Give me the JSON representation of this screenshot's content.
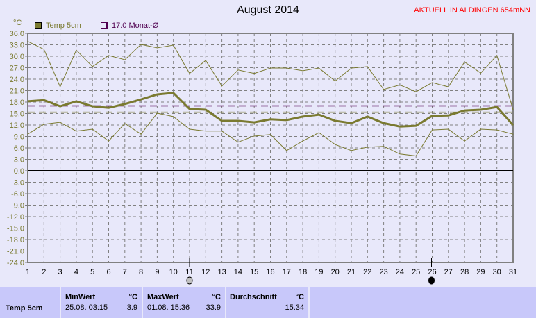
{
  "chart_data": {
    "type": "line",
    "title": "August 2014",
    "station": "AKTUELL IN ALDINGEN 654mNN",
    "ylabel": "°C",
    "ylim": [
      -24,
      36
    ],
    "yticks": [
      "36.0",
      "33.0",
      "30.0",
      "27.0",
      "24.0",
      "21.0",
      "18.0",
      "15.0",
      "12.0",
      "9.0",
      "6.0",
      "3.0",
      "0.0",
      "-3.0",
      "-6.0",
      "-9.0",
      "-12.0",
      "-15.0",
      "-18.0",
      "-21.0",
      "-24.0"
    ],
    "x": [
      1,
      2,
      3,
      4,
      5,
      6,
      7,
      8,
      9,
      10,
      11,
      12,
      13,
      14,
      15,
      16,
      17,
      18,
      19,
      20,
      21,
      22,
      23,
      24,
      25,
      26,
      27,
      28,
      29,
      30,
      31
    ],
    "grid": true,
    "legend": [
      {
        "label": "Temp 5cm",
        "color": "#7a7a30"
      },
      {
        "label": "17.0 Monat-Ø",
        "color": "#500050"
      }
    ],
    "series": [
      {
        "name": "Temp 5cm max",
        "values": [
          33.9,
          31.8,
          22.0,
          31.6,
          27.3,
          30.2,
          29.1,
          33.1,
          32.2,
          32.9,
          25.5,
          28.9,
          22.2,
          26.4,
          25.5,
          26.9,
          26.9,
          26.2,
          26.9,
          23.5,
          26.9,
          27.3,
          21.3,
          22.5,
          20.7,
          23.1,
          22.0,
          28.5,
          25.6,
          30.2,
          16.0
        ]
      },
      {
        "name": "Temp 5cm mittel",
        "values": [
          18.2,
          18.5,
          16.9,
          18.2,
          16.9,
          16.5,
          17.5,
          18.7,
          20.0,
          20.4,
          16.2,
          16.0,
          13.1,
          13.1,
          12.7,
          13.5,
          13.3,
          14.2,
          14.7,
          13.1,
          12.5,
          14.2,
          12.5,
          11.6,
          11.8,
          14.4,
          14.5,
          15.8,
          16.0,
          16.7,
          12.0
        ]
      },
      {
        "name": "Temp 5cm min",
        "values": [
          9.6,
          12.2,
          12.7,
          10.4,
          10.9,
          7.8,
          12.4,
          9.6,
          15.1,
          14.2,
          10.9,
          10.4,
          10.4,
          7.5,
          9.1,
          9.5,
          5.3,
          7.8,
          10.0,
          6.9,
          5.3,
          6.2,
          6.4,
          4.4,
          3.9,
          10.7,
          10.9,
          7.8,
          10.9,
          10.7,
          9.6
        ]
      }
    ],
    "reference_lines": [
      {
        "name": "Monat-Ø",
        "value": 17.0,
        "color": "#500050"
      },
      {
        "name": "Durchschnitt",
        "value": 15.34,
        "color": "#7a7a30"
      }
    ],
    "moon_phases": [
      {
        "day": 11,
        "phase": "full-moon"
      },
      {
        "day": 26,
        "phase": "new-moon"
      }
    ]
  },
  "table": {
    "row_label": "Temp 5cm",
    "min": {
      "header": "MinWert",
      "unit": "°C",
      "time": "25.08.  03:15",
      "value": "3.9"
    },
    "max": {
      "header": "MaxWert",
      "unit": "°C",
      "time": "01.08.  15:36",
      "value": "33.9"
    },
    "avg": {
      "header": "Durchschnitt",
      "unit": "°C",
      "value": "15.34"
    }
  }
}
